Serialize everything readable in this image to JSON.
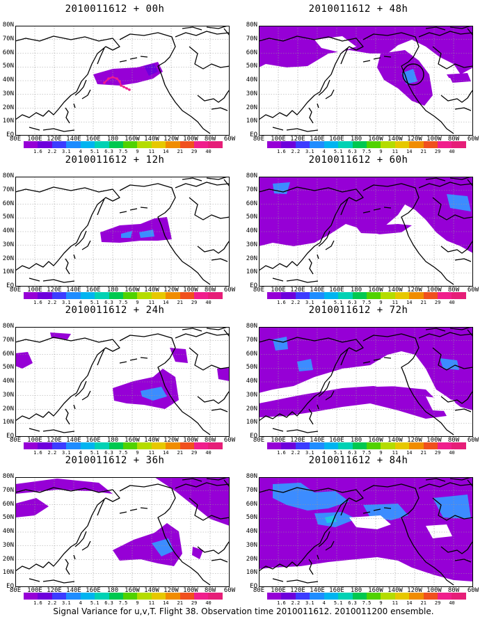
{
  "colorbar": {
    "labels": [
      "1.6",
      "2.2",
      "3.1",
      "4",
      "5.1",
      "6.3",
      "7.5",
      "9",
      "11",
      "14",
      "21",
      "29",
      "40"
    ],
    "colors": [
      "#9600d6",
      "#6e00dc",
      "#3c3cff",
      "#1e8cff",
      "#00b4f0",
      "#00d2b4",
      "#00c850",
      "#50d200",
      "#b4dc00",
      "#e6c800",
      "#f08c00",
      "#f0501e",
      "#f01e8c",
      "#e61e78"
    ]
  },
  "axes": {
    "y_labels": [
      "80N",
      "70N",
      "60N",
      "50N",
      "40N",
      "30N",
      "20N",
      "10N",
      "EQ"
    ],
    "x_labels": [
      "80E",
      "100E",
      "120E",
      "140E",
      "160E",
      "180",
      "160W",
      "140W",
      "120W",
      "100W",
      "80W",
      "60W"
    ]
  },
  "panels": [
    {
      "title": "2010011612 + 00h"
    },
    {
      "title": "2010011612 + 12h"
    },
    {
      "title": "2010011612 + 24h"
    },
    {
      "title": "2010011612 + 36h"
    },
    {
      "title": "2010011612 + 48h"
    },
    {
      "title": "2010011612 + 60h"
    },
    {
      "title": "2010011612 + 72h"
    },
    {
      "title": "2010011612 + 84h"
    }
  ],
  "caption": "Signal Variance for u,v,T. Flight 38. Observation time 2010011612. 2010011200 ensemble.",
  "colors": {
    "purple": "#9600d6",
    "violet": "#6e00dc",
    "blue": "#3c8cff",
    "cyan": "#1ec8e6",
    "track": "#f01e8c",
    "coast": "#000000",
    "grid": "#9a9a9a"
  }
}
